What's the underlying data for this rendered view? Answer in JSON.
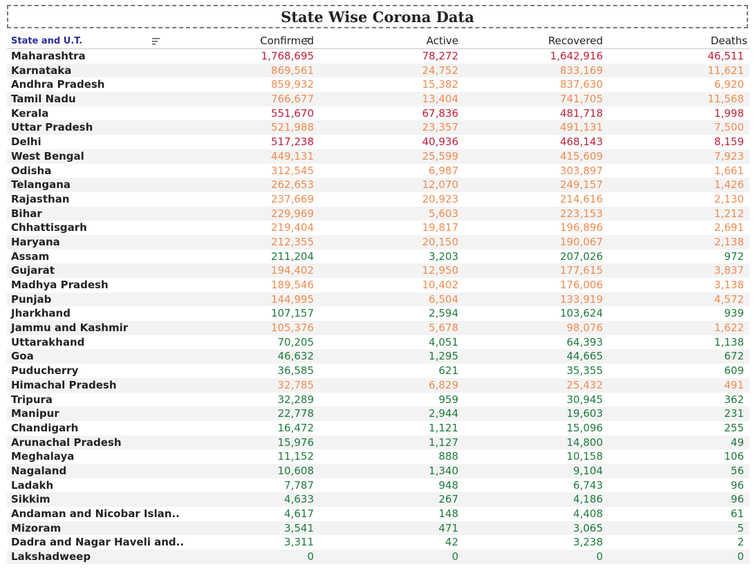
{
  "title": "State Wise Corona Data",
  "headers": {
    "state": "State and U.T.",
    "confirmed": "Confirmed",
    "active": "Active",
    "recovered": "Recovered",
    "deaths": "Deaths"
  },
  "colors": {
    "red": "#c0203a",
    "orange": "#f08c4f",
    "green": "#1d7a3c"
  },
  "rows": [
    {
      "state": "Maharashtra",
      "confirmed": "1,768,695",
      "active": "78,272",
      "recovered": "1,642,916",
      "deaths": "46,511",
      "c": [
        "red",
        "red",
        "red",
        "red"
      ]
    },
    {
      "state": "Karnataka",
      "confirmed": "869,561",
      "active": "24,752",
      "recovered": "833,169",
      "deaths": "11,621",
      "c": [
        "orange",
        "orange",
        "orange",
        "orange"
      ]
    },
    {
      "state": "Andhra Pradesh",
      "confirmed": "859,932",
      "active": "15,382",
      "recovered": "837,630",
      "deaths": "6,920",
      "c": [
        "orange",
        "orange",
        "orange",
        "orange"
      ]
    },
    {
      "state": "Tamil Nadu",
      "confirmed": "766,677",
      "active": "13,404",
      "recovered": "741,705",
      "deaths": "11,568",
      "c": [
        "orange",
        "orange",
        "orange",
        "orange"
      ]
    },
    {
      "state": "Kerala",
      "confirmed": "551,670",
      "active": "67,836",
      "recovered": "481,718",
      "deaths": "1,998",
      "c": [
        "red",
        "red",
        "red",
        "red"
      ]
    },
    {
      "state": "Uttar Pradesh",
      "confirmed": "521,988",
      "active": "23,357",
      "recovered": "491,131",
      "deaths": "7,500",
      "c": [
        "orange",
        "orange",
        "orange",
        "orange"
      ]
    },
    {
      "state": "Delhi",
      "confirmed": "517,238",
      "active": "40,936",
      "recovered": "468,143",
      "deaths": "8,159",
      "c": [
        "red",
        "red",
        "red",
        "red"
      ]
    },
    {
      "state": "West Bengal",
      "confirmed": "449,131",
      "active": "25,599",
      "recovered": "415,609",
      "deaths": "7,923",
      "c": [
        "orange",
        "orange",
        "orange",
        "orange"
      ]
    },
    {
      "state": "Odisha",
      "confirmed": "312,545",
      "active": "6,987",
      "recovered": "303,897",
      "deaths": "1,661",
      "c": [
        "orange",
        "orange",
        "orange",
        "orange"
      ]
    },
    {
      "state": "Telangana",
      "confirmed": "262,653",
      "active": "12,070",
      "recovered": "249,157",
      "deaths": "1,426",
      "c": [
        "orange",
        "orange",
        "orange",
        "orange"
      ]
    },
    {
      "state": "Rajasthan",
      "confirmed": "237,669",
      "active": "20,923",
      "recovered": "214,616",
      "deaths": "2,130",
      "c": [
        "orange",
        "orange",
        "orange",
        "orange"
      ]
    },
    {
      "state": "Bihar",
      "confirmed": "229,969",
      "active": "5,603",
      "recovered": "223,153",
      "deaths": "1,212",
      "c": [
        "orange",
        "orange",
        "orange",
        "orange"
      ]
    },
    {
      "state": "Chhattisgarh",
      "confirmed": "219,404",
      "active": "19,817",
      "recovered": "196,896",
      "deaths": "2,691",
      "c": [
        "orange",
        "orange",
        "orange",
        "orange"
      ]
    },
    {
      "state": "Haryana",
      "confirmed": "212,355",
      "active": "20,150",
      "recovered": "190,067",
      "deaths": "2,138",
      "c": [
        "orange",
        "orange",
        "orange",
        "orange"
      ]
    },
    {
      "state": "Assam",
      "confirmed": "211,204",
      "active": "3,203",
      "recovered": "207,026",
      "deaths": "972",
      "c": [
        "green",
        "green",
        "green",
        "green"
      ]
    },
    {
      "state": "Gujarat",
      "confirmed": "194,402",
      "active": "12,950",
      "recovered": "177,615",
      "deaths": "3,837",
      "c": [
        "orange",
        "orange",
        "orange",
        "orange"
      ]
    },
    {
      "state": "Madhya Pradesh",
      "confirmed": "189,546",
      "active": "10,402",
      "recovered": "176,006",
      "deaths": "3,138",
      "c": [
        "orange",
        "orange",
        "orange",
        "orange"
      ]
    },
    {
      "state": "Punjab",
      "confirmed": "144,995",
      "active": "6,504",
      "recovered": "133,919",
      "deaths": "4,572",
      "c": [
        "orange",
        "orange",
        "orange",
        "orange"
      ]
    },
    {
      "state": "Jharkhand",
      "confirmed": "107,157",
      "active": "2,594",
      "recovered": "103,624",
      "deaths": "939",
      "c": [
        "green",
        "green",
        "green",
        "green"
      ]
    },
    {
      "state": "Jammu and Kashmir",
      "confirmed": "105,376",
      "active": "5,678",
      "recovered": "98,076",
      "deaths": "1,622",
      "c": [
        "orange",
        "orange",
        "orange",
        "orange"
      ]
    },
    {
      "state": "Uttarakhand",
      "confirmed": "70,205",
      "active": "4,051",
      "recovered": "64,393",
      "deaths": "1,138",
      "c": [
        "green",
        "green",
        "green",
        "green"
      ]
    },
    {
      "state": "Goa",
      "confirmed": "46,632",
      "active": "1,295",
      "recovered": "44,665",
      "deaths": "672",
      "c": [
        "green",
        "green",
        "green",
        "green"
      ]
    },
    {
      "state": "Puducherry",
      "confirmed": "36,585",
      "active": "621",
      "recovered": "35,355",
      "deaths": "609",
      "c": [
        "green",
        "green",
        "green",
        "green"
      ]
    },
    {
      "state": "Himachal Pradesh",
      "confirmed": "32,785",
      "active": "6,829",
      "recovered": "25,432",
      "deaths": "491",
      "c": [
        "orange",
        "orange",
        "orange",
        "orange"
      ]
    },
    {
      "state": "Tripura",
      "confirmed": "32,289",
      "active": "959",
      "recovered": "30,945",
      "deaths": "362",
      "c": [
        "green",
        "green",
        "green",
        "green"
      ]
    },
    {
      "state": "Manipur",
      "confirmed": "22,778",
      "active": "2,944",
      "recovered": "19,603",
      "deaths": "231",
      "c": [
        "green",
        "green",
        "green",
        "green"
      ]
    },
    {
      "state": "Chandigarh",
      "confirmed": "16,472",
      "active": "1,121",
      "recovered": "15,096",
      "deaths": "255",
      "c": [
        "green",
        "green",
        "green",
        "green"
      ]
    },
    {
      "state": "Arunachal Pradesh",
      "confirmed": "15,976",
      "active": "1,127",
      "recovered": "14,800",
      "deaths": "49",
      "c": [
        "green",
        "green",
        "green",
        "green"
      ]
    },
    {
      "state": "Meghalaya",
      "confirmed": "11,152",
      "active": "888",
      "recovered": "10,158",
      "deaths": "106",
      "c": [
        "green",
        "green",
        "green",
        "green"
      ]
    },
    {
      "state": "Nagaland",
      "confirmed": "10,608",
      "active": "1,340",
      "recovered": "9,104",
      "deaths": "56",
      "c": [
        "green",
        "green",
        "green",
        "green"
      ]
    },
    {
      "state": "Ladakh",
      "confirmed": "7,787",
      "active": "948",
      "recovered": "6,743",
      "deaths": "96",
      "c": [
        "green",
        "green",
        "green",
        "green"
      ]
    },
    {
      "state": "Sikkim",
      "confirmed": "4,633",
      "active": "267",
      "recovered": "4,186",
      "deaths": "96",
      "c": [
        "green",
        "green",
        "green",
        "green"
      ]
    },
    {
      "state": "Andaman and Nicobar Islan..",
      "confirmed": "4,617",
      "active": "148",
      "recovered": "4,408",
      "deaths": "61",
      "c": [
        "green",
        "green",
        "green",
        "green"
      ]
    },
    {
      "state": "Mizoram",
      "confirmed": "3,541",
      "active": "471",
      "recovered": "3,065",
      "deaths": "5",
      "c": [
        "green",
        "green",
        "green",
        "green"
      ]
    },
    {
      "state": "Dadra and Nagar Haveli and..",
      "confirmed": "3,311",
      "active": "42",
      "recovered": "3,238",
      "deaths": "2",
      "c": [
        "green",
        "green",
        "green",
        "green"
      ]
    },
    {
      "state": "Lakshadweep",
      "confirmed": "0",
      "active": "0",
      "recovered": "0",
      "deaths": "0",
      "c": [
        "green",
        "green",
        "green",
        "green"
      ]
    }
  ]
}
